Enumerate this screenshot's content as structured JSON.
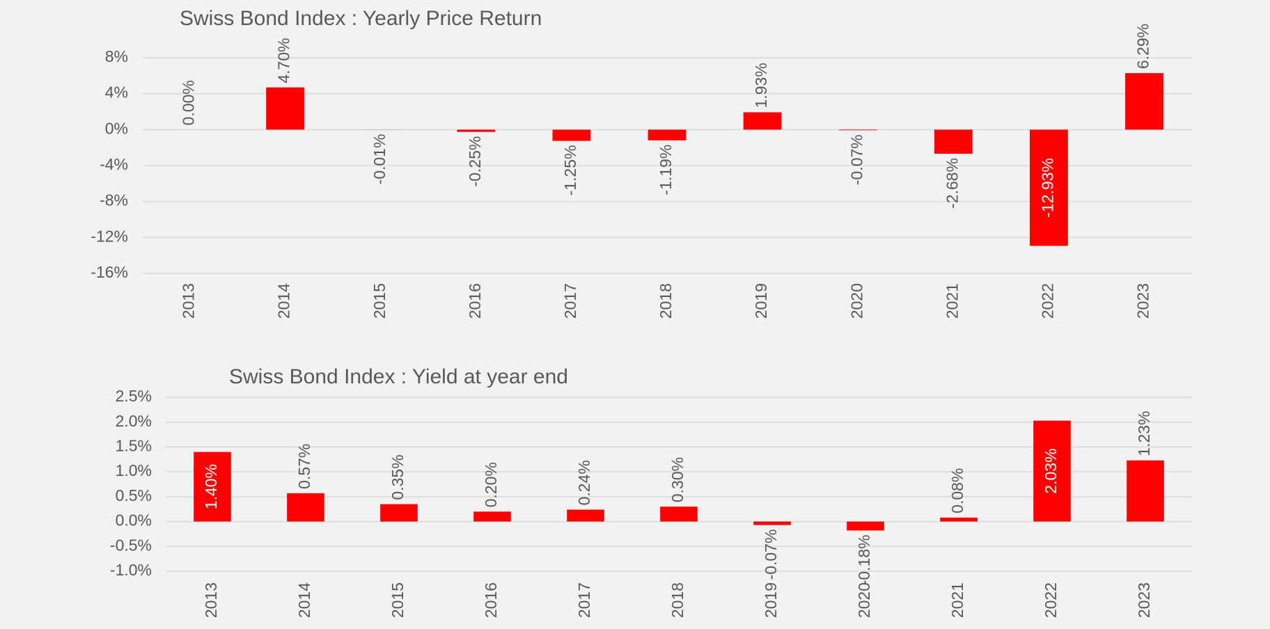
{
  "chart_data": [
    {
      "type": "bar",
      "title": "Swiss Bond Index : Yearly Price Return",
      "categories": [
        "2013",
        "2014",
        "2015",
        "2016",
        "2017",
        "2018",
        "2019",
        "2020",
        "2021",
        "2022",
        "2023"
      ],
      "values": [
        0.0,
        4.7,
        -0.01,
        -0.25,
        -1.25,
        -1.19,
        1.93,
        -0.07,
        -2.68,
        -12.93,
        6.29
      ],
      "value_labels": [
        "0.00%",
        "4.70%",
        "-0.01%",
        "-0.25%",
        "-1.25%",
        "-1.19%",
        "1.93%",
        "-0.07%",
        "-2.68%",
        "-12.93%",
        "6.29%"
      ],
      "color": "#ff0000",
      "ylim": [
        -16,
        8
      ],
      "yticks": [
        {
          "value": -16,
          "label": "-16%"
        },
        {
          "value": -12,
          "label": "-12%"
        },
        {
          "value": -8,
          "label": "-8%"
        },
        {
          "value": -4,
          "label": "-4%"
        },
        {
          "value": 0,
          "label": "0%"
        },
        {
          "value": 4,
          "label": "4%"
        },
        {
          "value": 8,
          "label": "8%"
        }
      ],
      "grid": true
    },
    {
      "type": "bar",
      "title": "Swiss Bond Index : Yield at year end",
      "categories": [
        "2013",
        "2014",
        "2015",
        "2016",
        "2017",
        "2018",
        "2019",
        "2020",
        "2021",
        "2022",
        "2023"
      ],
      "values": [
        1.4,
        0.57,
        0.35,
        0.2,
        0.24,
        0.3,
        -0.07,
        -0.18,
        0.08,
        2.03,
        1.23
      ],
      "value_labels": [
        "1.40%",
        "0.57%",
        "0.35%",
        "0.20%",
        "0.24%",
        "0.30%",
        "-0.07%",
        "-0.18%",
        "0.08%",
        "2.03%",
        "1.23%"
      ],
      "color": "#ff0000",
      "ylim": [
        -1.0,
        2.5
      ],
      "yticks": [
        {
          "value": -1.0,
          "label": "-1.0%"
        },
        {
          "value": -0.5,
          "label": "-0.5%"
        },
        {
          "value": 0.0,
          "label": "0.0%"
        },
        {
          "value": 0.5,
          "label": "0.5%"
        },
        {
          "value": 1.0,
          "label": "1.0%"
        },
        {
          "value": 1.5,
          "label": "1.5%"
        },
        {
          "value": 2.0,
          "label": "2.0%"
        },
        {
          "value": 2.5,
          "label": "2.5%"
        }
      ],
      "grid": true
    }
  ]
}
